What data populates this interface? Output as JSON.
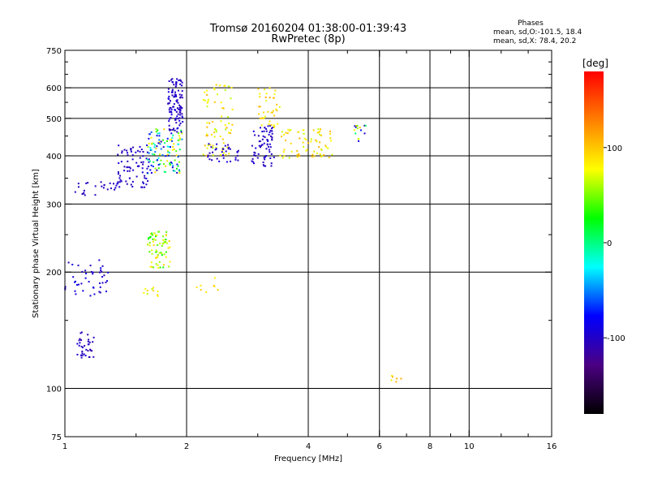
{
  "chart_data": {
    "type": "scatter",
    "title_line1": "Tromsø 20160204 01:38:00-01:39:43",
    "title_line2": "RwPretec (8p)",
    "stats": {
      "heading": "Phases",
      "line_o": "mean, sd,O:-101.5, 18.4",
      "line_x": "mean, sd,X:  78.4, 20.2"
    },
    "xlabel": "Frequency [MHz]",
    "ylabel": "Stationary phase Virtual Height [km]",
    "x_scale": "log",
    "y_scale": "log",
    "xlim": [
      1,
      16
    ],
    "ylim": [
      75,
      750
    ],
    "x_ticks": [
      {
        "value": 1,
        "label": "1"
      },
      {
        "value": 2,
        "label": "2"
      },
      {
        "value": 4,
        "label": "4"
      },
      {
        "value": 6,
        "label": "6"
      },
      {
        "value": 8,
        "label": "8"
      },
      {
        "value": 10,
        "label": "10"
      },
      {
        "value": 16,
        "label": "16"
      }
    ],
    "x_minor_ticks": [
      1.5,
      3,
      5,
      7,
      9,
      12,
      14
    ],
    "x_gridlines": [
      2,
      4,
      6,
      8,
      10
    ],
    "y_ticks": [
      {
        "value": 75,
        "label": "75"
      },
      {
        "value": 100,
        "label": "100"
      },
      {
        "value": 200,
        "label": "200"
      },
      {
        "value": 300,
        "label": "300"
      },
      {
        "value": 400,
        "label": "400"
      },
      {
        "value": 500,
        "label": "500"
      },
      {
        "value": 600,
        "label": "600"
      },
      {
        "value": 750,
        "label": "750"
      }
    ],
    "y_minor_ticks": [
      150,
      250,
      350,
      450,
      550,
      650,
      700
    ],
    "y_gridlines": [
      100,
      200,
      300,
      400,
      500,
      600
    ],
    "grid": true,
    "colorbar": {
      "unit": "[deg]",
      "range": [
        -180,
        180
      ],
      "ticks": [
        {
          "value": 100,
          "label": "100"
        },
        {
          "value": 0,
          "label": "0"
        },
        {
          "value": -100,
          "label": "-100"
        }
      ],
      "colors": [
        "#000000",
        "#4b0082",
        "#0000ff",
        "#00ffff",
        "#00ff00",
        "#ffff00",
        "#ff8000",
        "#ff0000"
      ]
    },
    "clusters": [
      {
        "label": "low-freq 200 km, O-mode",
        "x": [
          1.0,
          1.28
        ],
        "y": [
          170,
          215
        ],
        "phase": [
          -110,
          -80
        ],
        "n": 45
      },
      {
        "label": "low-freq 130 km, O-mode",
        "x": [
          1.06,
          1.18
        ],
        "y": [
          120,
          140
        ],
        "phase": [
          -115,
          -95
        ],
        "n": 35
      },
      {
        "label": "low-freq 330 km, O-mode",
        "x": [
          1.05,
          1.35
        ],
        "y": [
          315,
          345
        ],
        "phase": [
          -110,
          -95
        ],
        "n": 25
      },
      {
        "label": "1.35-1.6 MHz 350-430 km, O-mode",
        "x": [
          1.35,
          1.62
        ],
        "y": [
          330,
          430
        ],
        "phase": [
          -110,
          -90
        ],
        "n": 80
      },
      {
        "label": "1.6-1.95 MHz 380-470 km, mixed",
        "x": [
          1.6,
          1.95
        ],
        "y": [
          360,
          470
        ],
        "phase": [
          -110,
          100
        ],
        "n": 120
      },
      {
        "label": "1.8-1.95 MHz 480-640 km, O-mode",
        "x": [
          1.8,
          1.96
        ],
        "y": [
          460,
          640
        ],
        "phase": [
          -110,
          -90
        ],
        "n": 110
      },
      {
        "label": "1.6-1.8 MHz 210-250 km, X-mode",
        "x": [
          1.6,
          1.82
        ],
        "y": [
          205,
          255
        ],
        "phase": [
          20,
          100
        ],
        "n": 75
      },
      {
        "label": "2.2-2.6 MHz 400-620 km, X-mode",
        "x": [
          2.2,
          2.6
        ],
        "y": [
          400,
          620
        ],
        "phase": [
          60,
          110
        ],
        "n": 70
      },
      {
        "label": "2.25-2.7 MHz 390-430 km, O-mode",
        "x": [
          2.25,
          2.7
        ],
        "y": [
          385,
          430
        ],
        "phase": [
          -110,
          -90
        ],
        "n": 35
      },
      {
        "label": "2.9-3.3 MHz 380-470 km, O-mode",
        "x": [
          2.9,
          3.3
        ],
        "y": [
          375,
          480
        ],
        "phase": [
          -110,
          -90
        ],
        "n": 70
      },
      {
        "label": "3.0-3.4 MHz 470-600 km, X-mode",
        "x": [
          3.0,
          3.4
        ],
        "y": [
          470,
          600
        ],
        "phase": [
          70,
          110
        ],
        "n": 40
      },
      {
        "label": "3.4-4.6 MHz 400-470 km, X-mode",
        "x": [
          3.4,
          4.6
        ],
        "y": [
          395,
          470
        ],
        "phase": [
          60,
          110
        ],
        "n": 70
      },
      {
        "label": "5.2-5.6 MHz 440-480 km, mixed",
        "x": [
          5.2,
          5.6
        ],
        "y": [
          430,
          480
        ],
        "phase": [
          -110,
          110
        ],
        "n": 15
      },
      {
        "label": "1.5-1.7 MHz 175-185 km, X-mode",
        "x": [
          1.55,
          1.7
        ],
        "y": [
          172,
          185
        ],
        "phase": [
          60,
          100
        ],
        "n": 10
      },
      {
        "label": "2.0-2.4 MHz 180-200 km, X-mode",
        "x": [
          2.1,
          2.4
        ],
        "y": [
          175,
          195
        ],
        "phase": [
          70,
          100
        ],
        "n": 8
      },
      {
        "label": "6.5 MHz 105 km, X-mode",
        "x": [
          6.3,
          6.8
        ],
        "y": [
          104,
          108
        ],
        "phase": [
          80,
          110
        ],
        "n": 6
      }
    ]
  }
}
